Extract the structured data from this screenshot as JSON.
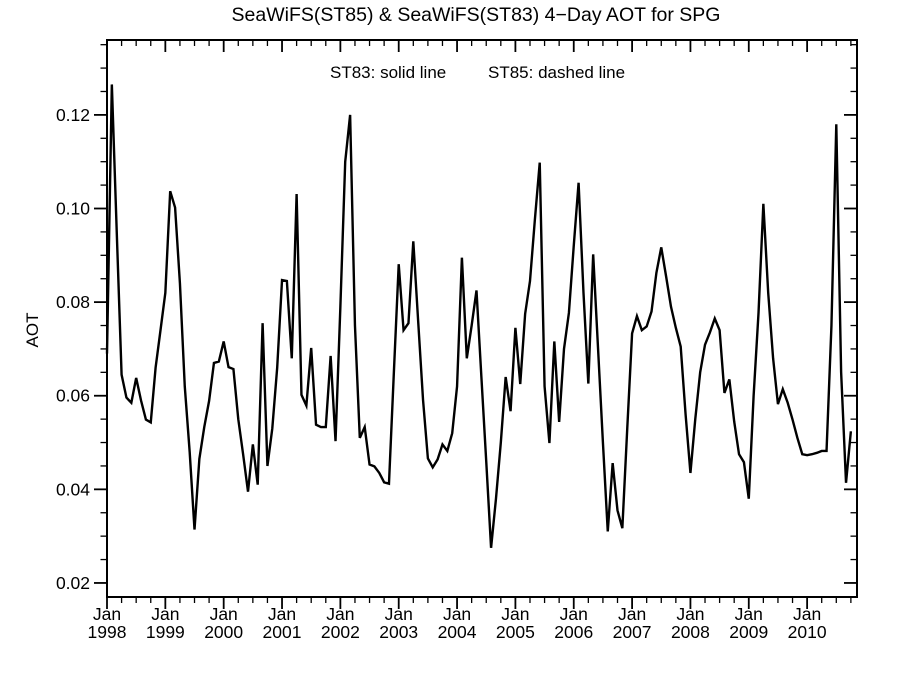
{
  "title": "SeaWiFS(ST85) & SeaWiFS(ST83) 4−Day AOT for SPG",
  "annotation_left": "ST83: solid line",
  "annotation_right": "ST85: dashed line",
  "colors": {
    "line": "#000000",
    "axis": "#000000",
    "background": "#ffffff"
  },
  "chart_data": {
    "type": "line",
    "title": "SeaWiFS(ST85) & SeaWiFS(ST83) 4−Day AOT for SPG",
    "xlabel": "",
    "ylabel": "AOT",
    "grid": false,
    "legend_position": "none (text annotation inside plot area)",
    "xlim": [
      1998.0,
      2010.855
    ],
    "ylim": [
      0.017,
      0.136
    ],
    "x_major_tick_years": [
      1998,
      1999,
      2000,
      2001,
      2002,
      2003,
      2004,
      2005,
      2006,
      2007,
      2008,
      2009,
      2010
    ],
    "x_tick_label_top": "Jan",
    "x_minor_step_years": 0.25,
    "yticks": [
      0.02,
      0.04,
      0.06,
      0.08,
      0.1,
      0.12
    ],
    "ytick_labels": [
      "0.02",
      "0.04",
      "0.06",
      "0.08",
      "0.10",
      "0.12"
    ],
    "y_minor_step": 0.005,
    "series": [
      {
        "name": "ST83 (solid line)",
        "style": "solid",
        "x": [
          1998.0,
          1998.083,
          1998.167,
          1998.25,
          1998.333,
          1998.417,
          1998.5,
          1998.583,
          1998.667,
          1998.75,
          1998.833,
          1998.917,
          1999.0,
          1999.083,
          1999.167,
          1999.25,
          1999.333,
          1999.417,
          1999.5,
          1999.583,
          1999.667,
          1999.75,
          1999.833,
          1999.917,
          2000.0,
          2000.083,
          2000.167,
          2000.25,
          2000.333,
          2000.417,
          2000.5,
          2000.583,
          2000.667,
          2000.75,
          2000.833,
          2000.917,
          2001.0,
          2001.083,
          2001.167,
          2001.25,
          2001.333,
          2001.417,
          2001.5,
          2001.583,
          2001.667,
          2001.75,
          2001.833,
          2001.917,
          2002.0,
          2002.083,
          2002.167,
          2002.25,
          2002.333,
          2002.417,
          2002.5,
          2002.583,
          2002.667,
          2002.75,
          2002.833,
          2002.917,
          2003.0,
          2003.083,
          2003.167,
          2003.25,
          2003.333,
          2003.417,
          2003.5,
          2003.583,
          2003.667,
          2003.75,
          2003.833,
          2003.917,
          2004.0,
          2004.083,
          2004.167,
          2004.25,
          2004.333,
          2004.417,
          2004.5,
          2004.583,
          2004.667,
          2004.75,
          2004.833,
          2004.917,
          2005.0,
          2005.083,
          2005.167,
          2005.25,
          2005.333,
          2005.417,
          2005.5,
          2005.583,
          2005.667,
          2005.75,
          2005.833,
          2005.917,
          2006.0,
          2006.083,
          2006.167,
          2006.25,
          2006.333,
          2006.417,
          2006.5,
          2006.583,
          2006.667,
          2006.75,
          2006.833,
          2006.917,
          2007.0,
          2007.083,
          2007.167,
          2007.25,
          2007.333,
          2007.417,
          2007.5,
          2007.583,
          2007.667,
          2007.75,
          2007.833,
          2007.917,
          2008.0,
          2008.083,
          2008.167,
          2008.25,
          2008.333,
          2008.417,
          2008.5,
          2008.583,
          2008.667,
          2008.75,
          2008.833,
          2008.917,
          2009.0,
          2009.083,
          2009.167,
          2009.25,
          2009.333,
          2009.417,
          2009.5,
          2009.583,
          2009.667,
          2009.75,
          2009.833,
          2009.917,
          2010.0,
          2010.083,
          2010.167,
          2010.25,
          2010.333,
          2010.417,
          2010.5,
          2010.583,
          2010.667,
          2010.75
        ],
        "values": [
          0.069,
          0.1265,
          0.095,
          0.0645,
          0.0596,
          0.0585,
          0.0638,
          0.059,
          0.0549,
          0.0543,
          0.066,
          0.074,
          0.082,
          0.1037,
          0.1002,
          0.084,
          0.062,
          0.048,
          0.0314,
          0.0465,
          0.0533,
          0.0589,
          0.067,
          0.0673,
          0.0716,
          0.0661,
          0.0657,
          0.055,
          0.0475,
          0.0395,
          0.0496,
          0.041,
          0.0755,
          0.045,
          0.053,
          0.066,
          0.0847,
          0.0845,
          0.068,
          0.1031,
          0.0602,
          0.0579,
          0.0702,
          0.0538,
          0.0533,
          0.0533,
          0.0685,
          0.0503,
          0.079,
          0.11,
          0.12,
          0.075,
          0.051,
          0.0533,
          0.0453,
          0.0449,
          0.0435,
          0.0415,
          0.0412,
          0.065,
          0.0881,
          0.074,
          0.0755,
          0.093,
          0.076,
          0.0591,
          0.0466,
          0.0447,
          0.0464,
          0.0496,
          0.0482,
          0.052,
          0.062,
          0.0895,
          0.068,
          0.075,
          0.0825,
          0.064,
          0.046,
          0.0275,
          0.038,
          0.05,
          0.064,
          0.0567,
          0.0745,
          0.0625,
          0.0775,
          0.0845,
          0.0975,
          0.1098,
          0.062,
          0.0499,
          0.0716,
          0.0544,
          0.07,
          0.0777,
          0.092,
          0.1055,
          0.082,
          0.0626,
          0.0902,
          0.07,
          0.05,
          0.031,
          0.0456,
          0.0355,
          0.0317,
          0.053,
          0.0733,
          0.077,
          0.074,
          0.0748,
          0.078,
          0.0863,
          0.0917,
          0.0855,
          0.079,
          0.0745,
          0.0705,
          0.056,
          0.0435,
          0.055,
          0.065,
          0.0709,
          0.0735,
          0.0765,
          0.074,
          0.0606,
          0.0635,
          0.0545,
          0.0475,
          0.0458,
          0.038,
          0.06,
          0.0777,
          0.101,
          0.082,
          0.068,
          0.0582,
          0.0614,
          0.0585,
          0.0549,
          0.051,
          0.0475,
          0.0473,
          0.0475,
          0.0478,
          0.0482,
          0.0482,
          0.075,
          0.118,
          0.065,
          0.0414,
          0.0524
        ]
      }
    ],
    "annotation": "ST83: solid line   ST85: dashed line"
  },
  "layout_note": "single black solid curve; ST85 dashed series not visibly distinguishable (overlapping/absent)"
}
